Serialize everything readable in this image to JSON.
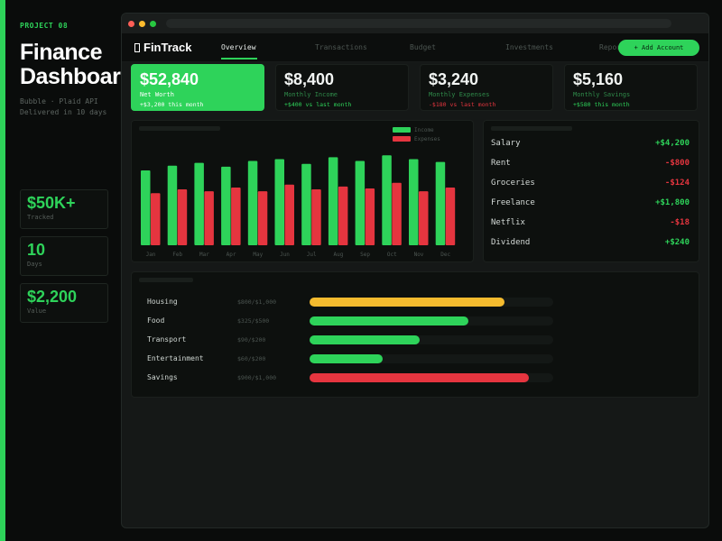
{
  "colors": {
    "accent": "#2ed35a",
    "negative": "#e5353f",
    "warning": "#f5bb2e"
  },
  "promo": {
    "tag": "PROJECT 08",
    "title_line1": "Finance",
    "title_line2": "Dashboard",
    "sub_line1": "Bubble · Plaid API",
    "sub_line2": "Delivered in 10 days",
    "stats": [
      {
        "value": "$50K+",
        "label": "Tracked"
      },
      {
        "value": "10",
        "label": "Days"
      },
      {
        "value": "$2,200",
        "label": "Value"
      }
    ]
  },
  "app": {
    "brand": "FinTrack",
    "nav": [
      "Overview",
      "Transactions",
      "Budget",
      "Investments",
      "Reports"
    ],
    "add_button": "+ Add Account",
    "kpis": [
      {
        "value": "$52,840",
        "label": "Net Worth",
        "delta": "+$3,200 this month",
        "negative": false
      },
      {
        "value": "$8,400",
        "label": "Monthly Income",
        "delta": "+$400 vs last month",
        "negative": false
      },
      {
        "value": "$3,240",
        "label": "Monthly Expenses",
        "delta": "-$180 vs last month",
        "negative": true
      },
      {
        "value": "$5,160",
        "label": "Monthly Savings",
        "delta": "+$580 this month",
        "negative": false
      }
    ],
    "legend": {
      "income": "Income",
      "expenses": "Expenses"
    },
    "transactions": [
      {
        "name": "Salary",
        "amount": "+$4,200",
        "negative": false
      },
      {
        "name": "Rent",
        "amount": "-$800",
        "negative": true
      },
      {
        "name": "Groceries",
        "amount": "-$124",
        "negative": true
      },
      {
        "name": "Freelance",
        "amount": "+$1,800",
        "negative": false
      },
      {
        "name": "Netflix",
        "amount": "-$18",
        "negative": true
      },
      {
        "name": "Dividend",
        "amount": "+$240",
        "negative": false
      }
    ],
    "budget": [
      {
        "category": "Housing",
        "amount": "$800/$1,000",
        "ratio": 0.8,
        "status": "warning"
      },
      {
        "category": "Food",
        "amount": "$325/$500",
        "ratio": 0.65,
        "status": "ok"
      },
      {
        "category": "Transport",
        "amount": "$90/$200",
        "ratio": 0.45,
        "status": "ok"
      },
      {
        "category": "Entertainment",
        "amount": "$60/$200",
        "ratio": 0.3,
        "status": "ok"
      },
      {
        "category": "Savings",
        "amount": "$900/$1,000",
        "ratio": 0.9,
        "status": "over"
      }
    ]
  },
  "chart_data": {
    "type": "bar",
    "categories": [
      "Jan",
      "Feb",
      "Mar",
      "Apr",
      "May",
      "Jun",
      "Jul",
      "Aug",
      "Sep",
      "Oct",
      "Nov",
      "Dec"
    ],
    "series": [
      {
        "name": "Income",
        "values": [
          7.9,
          8.4,
          8.7,
          8.3,
          8.9,
          9.1,
          8.6,
          9.3,
          8.9,
          9.5,
          9.1,
          8.8
        ]
      },
      {
        "name": "Expenses",
        "values": [
          5.5,
          5.9,
          5.7,
          6.1,
          5.7,
          6.4,
          5.9,
          6.2,
          6.0,
          6.6,
          5.7,
          6.1
        ]
      }
    ],
    "ylim": [
      0,
      10
    ],
    "legend": "top-right"
  }
}
